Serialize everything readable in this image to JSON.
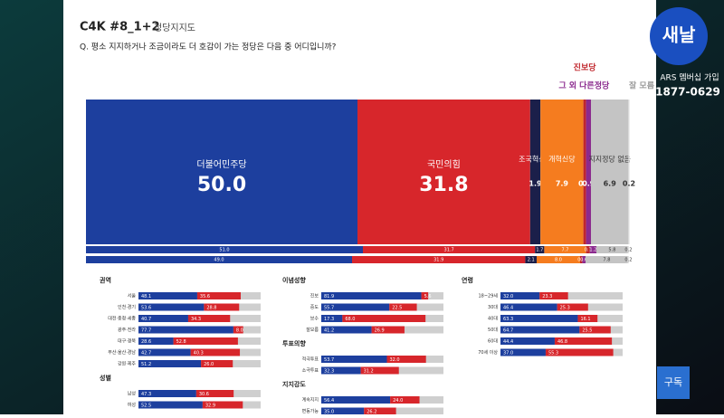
{
  "header": {
    "code": "C4K #8_1+2",
    "title": "정당지지도",
    "question": "Q. 평소 지지하거나 조금이라도 더 호감이 가는 정당은 다음 중 어디입니까?"
  },
  "overlay": {
    "channel": "새날",
    "ars": "ARS 멤버십 가입",
    "phone": "1877-0629",
    "subscribe": "구독"
  },
  "chart_data": {
    "type": "stacked_bar",
    "xlim": [
      0,
      100
    ],
    "categories": [
      null,
      null,
      null
    ],
    "series": [
      {
        "name": "더불어민주당",
        "color": "#1d3f9e",
        "values": [
          50.0,
          51.0,
          49.0
        ],
        "value_labels": [
          "50.0",
          "51.0",
          "49.0"
        ]
      },
      {
        "name": "국민의힘",
        "color": "#d7262b",
        "values": [
          31.8,
          31.7,
          31.9
        ],
        "value_labels": [
          "31.8",
          "31.7",
          "31.9"
        ]
      },
      {
        "name": "조국혁신당",
        "color": "#1b1f4a",
        "values": [
          1.9,
          1.7,
          2.1
        ],
        "value_labels": [
          "1.9",
          "1.7",
          "2.1"
        ]
      },
      {
        "name": "개혁신당",
        "color": "#f57c1f",
        "values": [
          7.9,
          7.7,
          8.0
        ],
        "value_labels": [
          "7.9",
          "7.7",
          "8.0"
        ]
      },
      {
        "name": "진보당",
        "color": "#c0262c",
        "values": [
          0.5,
          0.7,
          0.4
        ],
        "value_labels": [
          "0.5",
          "0.7",
          "0.4"
        ]
      },
      {
        "name": "그 외 다른정당",
        "color": "#8b2a8e",
        "values": [
          0.9,
          1.2,
          0.6
        ],
        "value_labels": [
          "0.9",
          "1.2",
          "0.6"
        ]
      },
      {
        "name": "지지정당 없음",
        "color": "#c4c4c4",
        "values": [
          6.9,
          5.8,
          7.8
        ],
        "value_labels": [
          "6.9",
          "5.8",
          "7.8"
        ]
      },
      {
        "name": "잘 모름",
        "color": "#e2e2e2",
        "values": [
          0.2,
          0.2,
          0.2
        ],
        "value_labels": [
          "0.2",
          "0.2",
          "0.2"
        ]
      }
    ]
  },
  "panels": [
    {
      "title": "권역",
      "rows": [
        {
          "label": "서울",
          "values": [
            48.1,
            35.6
          ],
          "value_labels": [
            "48.1",
            "35.6"
          ]
        },
        {
          "label": "인천·경기",
          "values": [
            53.6,
            28.8
          ],
          "value_labels": [
            "53.6",
            "28.8"
          ]
        },
        {
          "label": "대전·충청·세종",
          "values": [
            40.7,
            34.3
          ],
          "value_labels": [
            "40.7",
            "34.3"
          ]
        },
        {
          "label": "광주·전라",
          "values": [
            77.7,
            8.0
          ],
          "value_labels": [
            "77.7",
            "8.0"
          ]
        },
        {
          "label": "대구·경북",
          "values": [
            28.6,
            52.8
          ],
          "value_labels": [
            "28.6",
            "52.8"
          ]
        },
        {
          "label": "부산·울산·경남",
          "values": [
            42.7,
            40.3
          ],
          "value_labels": [
            "42.7",
            "40.3"
          ]
        },
        {
          "label": "강원·제주",
          "values": [
            51.2,
            26.0
          ],
          "value_labels": [
            "51.2",
            "26.0"
          ]
        }
      ]
    },
    {
      "title": "성별",
      "rows": [
        {
          "label": "남성",
          "values": [
            47.3,
            30.6
          ],
          "value_labels": [
            "47.3",
            "30.6"
          ]
        },
        {
          "label": "여성",
          "values": [
            52.5,
            32.9
          ],
          "value_labels": [
            "52.5",
            "32.9"
          ]
        }
      ]
    },
    {
      "title": "이념성향",
      "rows": [
        {
          "label": "진보",
          "values": [
            81.9,
            5.6
          ],
          "value_labels": [
            "81.9",
            "5.6"
          ]
        },
        {
          "label": "중도",
          "values": [
            55.7,
            22.5
          ],
          "value_labels": [
            "55.7",
            "22.5"
          ]
        },
        {
          "label": "보수",
          "values": [
            17.3,
            68.0
          ],
          "value_labels": [
            "17.3",
            "68.0"
          ]
        },
        {
          "label": "잘모름",
          "values": [
            41.2,
            26.9
          ],
          "value_labels": [
            "41.2",
            "26.9"
          ]
        }
      ]
    },
    {
      "title": "투표의향",
      "rows": [
        {
          "label": "적극투표",
          "values": [
            53.7,
            32.0
          ],
          "value_labels": [
            "53.7",
            "32.0"
          ]
        },
        {
          "label": "소극투표",
          "values": [
            32.3,
            31.2
          ],
          "value_labels": [
            "32.3",
            "31.2"
          ]
        }
      ]
    },
    {
      "title": "지지강도",
      "rows": [
        {
          "label": "계속지지",
          "values": [
            56.4,
            24.0
          ],
          "value_labels": [
            "56.4",
            "24.0"
          ]
        },
        {
          "label": "변동가능",
          "values": [
            35.0,
            26.2
          ],
          "value_labels": [
            "35.0",
            "26.2"
          ]
        }
      ]
    },
    {
      "title": "연령",
      "rows": [
        {
          "label": "18~29세",
          "values": [
            32.0,
            23.3
          ],
          "value_labels": [
            "32.0",
            "23.3"
          ]
        },
        {
          "label": "30대",
          "values": [
            46.4,
            25.3
          ],
          "value_labels": [
            "46.4",
            "25.3"
          ]
        },
        {
          "label": "40대",
          "values": [
            63.3,
            16.1
          ],
          "value_labels": [
            "63.3",
            "16.1"
          ]
        },
        {
          "label": "50대",
          "values": [
            64.7,
            25.5
          ],
          "value_labels": [
            "64.7",
            "25.5"
          ]
        },
        {
          "label": "60대",
          "values": [
            44.4,
            46.8
          ],
          "value_labels": [
            "44.4",
            "46.8"
          ]
        },
        {
          "label": "70세 이상",
          "values": [
            37.0,
            55.3
          ],
          "value_labels": [
            "37.0",
            "55.3"
          ]
        }
      ]
    }
  ]
}
